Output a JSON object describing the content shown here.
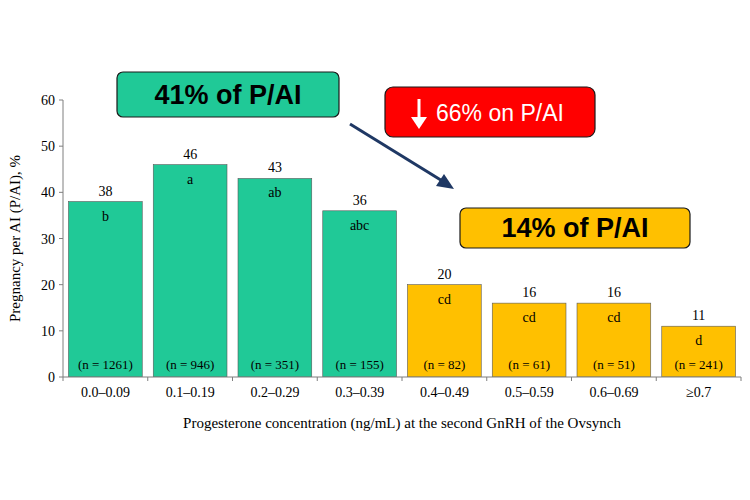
{
  "chart_data": {
    "type": "bar",
    "y_label": "Pregnancy per AI (P/AI), %",
    "x_label": "Progesterone concentration (ng/mL) at the second GnRH of the Ovsynch",
    "categories": [
      "0.0–0.09",
      "0.1–0.19",
      "0.2–0.29",
      "0.3–0.39",
      "0.4–0.49",
      "0.5–0.59",
      "0.6–0.69",
      "≥0.7"
    ],
    "values": [
      38,
      46,
      43,
      36,
      20,
      16,
      16,
      11
    ],
    "colors": [
      "#20c997",
      "#20c997",
      "#20c997",
      "#20c997",
      "#ffc000",
      "#ffc000",
      "#ffc000",
      "#ffc000"
    ],
    "letters": [
      "b",
      "a",
      "ab",
      "abc",
      "cd",
      "cd",
      "cd",
      "d"
    ],
    "n_labels": [
      "(n = 1261)",
      "(n = 946)",
      "(n = 351)",
      "(n = 155)",
      "(n = 82)",
      "(n = 61)",
      "(n = 51)",
      "(n = 241)"
    ],
    "ylim": [
      0,
      60
    ],
    "yticks": [
      0,
      10,
      20,
      30,
      40,
      50,
      60
    ],
    "grid": false,
    "data_labels": true,
    "annotations": [
      {
        "text": "41% of P/AI"
      },
      {
        "text": "66% on P/AI"
      },
      {
        "text": "14% of P/AI"
      }
    ]
  }
}
